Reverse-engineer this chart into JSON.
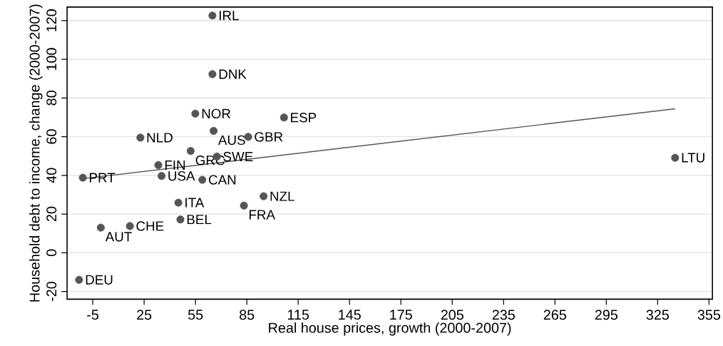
{
  "chart_data": {
    "type": "scatter",
    "xlabel": "Real house prices, growth (2000-2007)",
    "ylabel": "Household debt to income, change (2000-2007)",
    "xlim": [
      -20,
      357
    ],
    "ylim": [
      -24,
      127
    ],
    "xticks": [
      -5,
      25,
      55,
      85,
      115,
      145,
      175,
      205,
      235,
      265,
      295,
      325,
      355
    ],
    "yticks": [
      -20,
      0,
      20,
      40,
      60,
      80,
      100,
      120
    ],
    "grid": "y",
    "series": [
      {
        "marker": "circle",
        "color": "#555555",
        "x": [
          64.9,
          64.9,
          54.9,
          106.7,
          65.6,
          85.8,
          22.8,
          52.2,
          67.5,
          33.3,
          35.2,
          -10.8,
          59.0,
          94.8,
          45.0,
          83.3,
          46.2,
          16.7,
          -0.3,
          -13.0,
          335.2
        ],
        "values": [
          122.6,
          92.3,
          71.9,
          69.9,
          63.0,
          59.9,
          59.5,
          52.6,
          49.7,
          45.3,
          39.7,
          38.8,
          37.7,
          29.2,
          25.9,
          24.4,
          17.2,
          13.8,
          13.0,
          -14.0,
          49.1
        ]
      },
      {
        "type": "line",
        "marker": "none",
        "color": "#555555",
        "x": [
          -10.8,
          335.2
        ],
        "values": [
          38.3,
          74.4
        ]
      }
    ],
    "annotations": [
      {
        "text": "IRL",
        "x": 64.9,
        "y": 122.6
      },
      {
        "text": "DNK",
        "x": 64.9,
        "y": 92.3
      },
      {
        "text": "NOR",
        "x": 54.9,
        "y": 71.9
      },
      {
        "text": "ESP",
        "x": 106.7,
        "y": 69.9
      },
      {
        "text": "AUS",
        "x": 65.6,
        "y": 63.0
      },
      {
        "text": "GBR",
        "x": 85.8,
        "y": 59.9
      },
      {
        "text": "NLD",
        "x": 22.8,
        "y": 59.5
      },
      {
        "text": "GRC",
        "x": 52.2,
        "y": 52.6
      },
      {
        "text": "SWE",
        "x": 67.5,
        "y": 49.7
      },
      {
        "text": "FIN",
        "x": 33.3,
        "y": 45.3
      },
      {
        "text": "USA",
        "x": 35.2,
        "y": 39.7
      },
      {
        "text": "PRT",
        "x": -10.8,
        "y": 38.8
      },
      {
        "text": "CAN",
        "x": 59.0,
        "y": 37.7
      },
      {
        "text": "NZL",
        "x": 94.8,
        "y": 29.2
      },
      {
        "text": "ITA",
        "x": 45.0,
        "y": 25.9
      },
      {
        "text": "FRA",
        "x": 83.3,
        "y": 24.4
      },
      {
        "text": "BEL",
        "x": 46.2,
        "y": 17.2
      },
      {
        "text": "CHE",
        "x": 16.7,
        "y": 13.8
      },
      {
        "text": "AUT",
        "x": -0.3,
        "y": 13.0
      },
      {
        "text": "DEU",
        "x": -13.0,
        "y": -14.0
      },
      {
        "text": "LTU",
        "x": 335.2,
        "y": 49.1
      }
    ]
  }
}
